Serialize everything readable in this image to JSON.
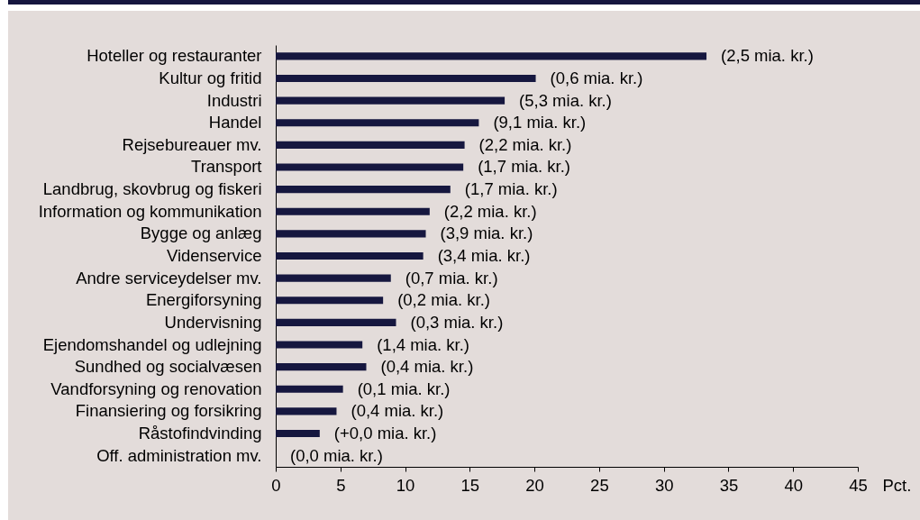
{
  "chart_data": {
    "type": "bar",
    "orientation": "horizontal",
    "xlabel": "Pct.",
    "categories": [
      "Hoteller og restauranter",
      "Kultur og fritid",
      "Industri",
      "Handel",
      "Rejsebureauer mv.",
      "Transport",
      "Landbrug, skovbrug og fiskeri",
      "Information og kommunikation",
      "Bygge og anlæg",
      "Videnservice",
      "Andre serviceydelser mv.",
      "Energiforsyning",
      "Undervisning",
      "Ejendomshandel og udlejning",
      "Sundhed og socialvæsen",
      "Vandforsyning og renovation",
      "Finansiering og forsikring",
      "Råstofindvinding",
      "Off. administration mv."
    ],
    "values": [
      33.3,
      20.1,
      17.7,
      15.7,
      14.6,
      14.5,
      13.5,
      11.9,
      11.6,
      11.4,
      8.9,
      8.3,
      9.3,
      6.7,
      7.0,
      5.2,
      4.7,
      3.4,
      0
    ],
    "annotations": [
      {
        "text": "(2,5 mia. kr.)",
        "x": 33.3,
        "y": "Hoteller og restauranter"
      },
      {
        "text": "(0,6 mia. kr.)",
        "x": 20.1,
        "y": "Kultur og fritid"
      },
      {
        "text": "(5,3 mia. kr.)",
        "x": 17.7,
        "y": "Industri"
      },
      {
        "text": "(9,1 mia. kr.)",
        "x": 15.7,
        "y": "Handel"
      },
      {
        "text": "(2,2 mia. kr.)",
        "x": 14.6,
        "y": "Rejsebureauer mv."
      },
      {
        "text": "(1,7 mia. kr.)",
        "x": 14.5,
        "y": "Transport"
      },
      {
        "text": "(1,7 mia. kr.)",
        "x": 13.5,
        "y": "Landbrug, skovbrug og fiskeri"
      },
      {
        "text": "(2,2 mia. kr.)",
        "x": 11.9,
        "y": "Information og kommunikation"
      },
      {
        "text": "(3,9 mia. kr.)",
        "x": 11.6,
        "y": "Bygge og anlæg"
      },
      {
        "text": "(3,4 mia. kr.)",
        "x": 11.4,
        "y": "Videnservice"
      },
      {
        "text": "(0,7 mia. kr.)",
        "x": 8.9,
        "y": "Andre serviceydelser mv."
      },
      {
        "text": "(0,2 mia. kr.)",
        "x": 8.3,
        "y": "Energiforsyning"
      },
      {
        "text": "(0,3 mia. kr.)",
        "x": 9.3,
        "y": "Undervisning"
      },
      {
        "text": "(1,4 mia. kr.)",
        "x": 6.7,
        "y": "Ejendomshandel og udlejning"
      },
      {
        "text": "(0,4 mia. kr.)",
        "x": 7.0,
        "y": "Sundhed og socialvæsen"
      },
      {
        "text": "(0,1 mia. kr.)",
        "x": 5.2,
        "y": "Vandforsyning og renovation"
      },
      {
        "text": "(0,4 mia. kr.)",
        "x": 4.7,
        "y": "Finansiering og forsikring"
      },
      {
        "text": "(+0,0 mia. kr.)",
        "x": 3.4,
        "y": "Råstofindvinding"
      },
      {
        "text": "(0,0 mia. kr.)",
        "x": 0,
        "y": "Off. administration mv."
      }
    ],
    "color": "#16173f",
    "xlim": [
      0,
      45
    ],
    "xticks": [
      0,
      5,
      10,
      15,
      20,
      25,
      30,
      35,
      40,
      45
    ]
  }
}
